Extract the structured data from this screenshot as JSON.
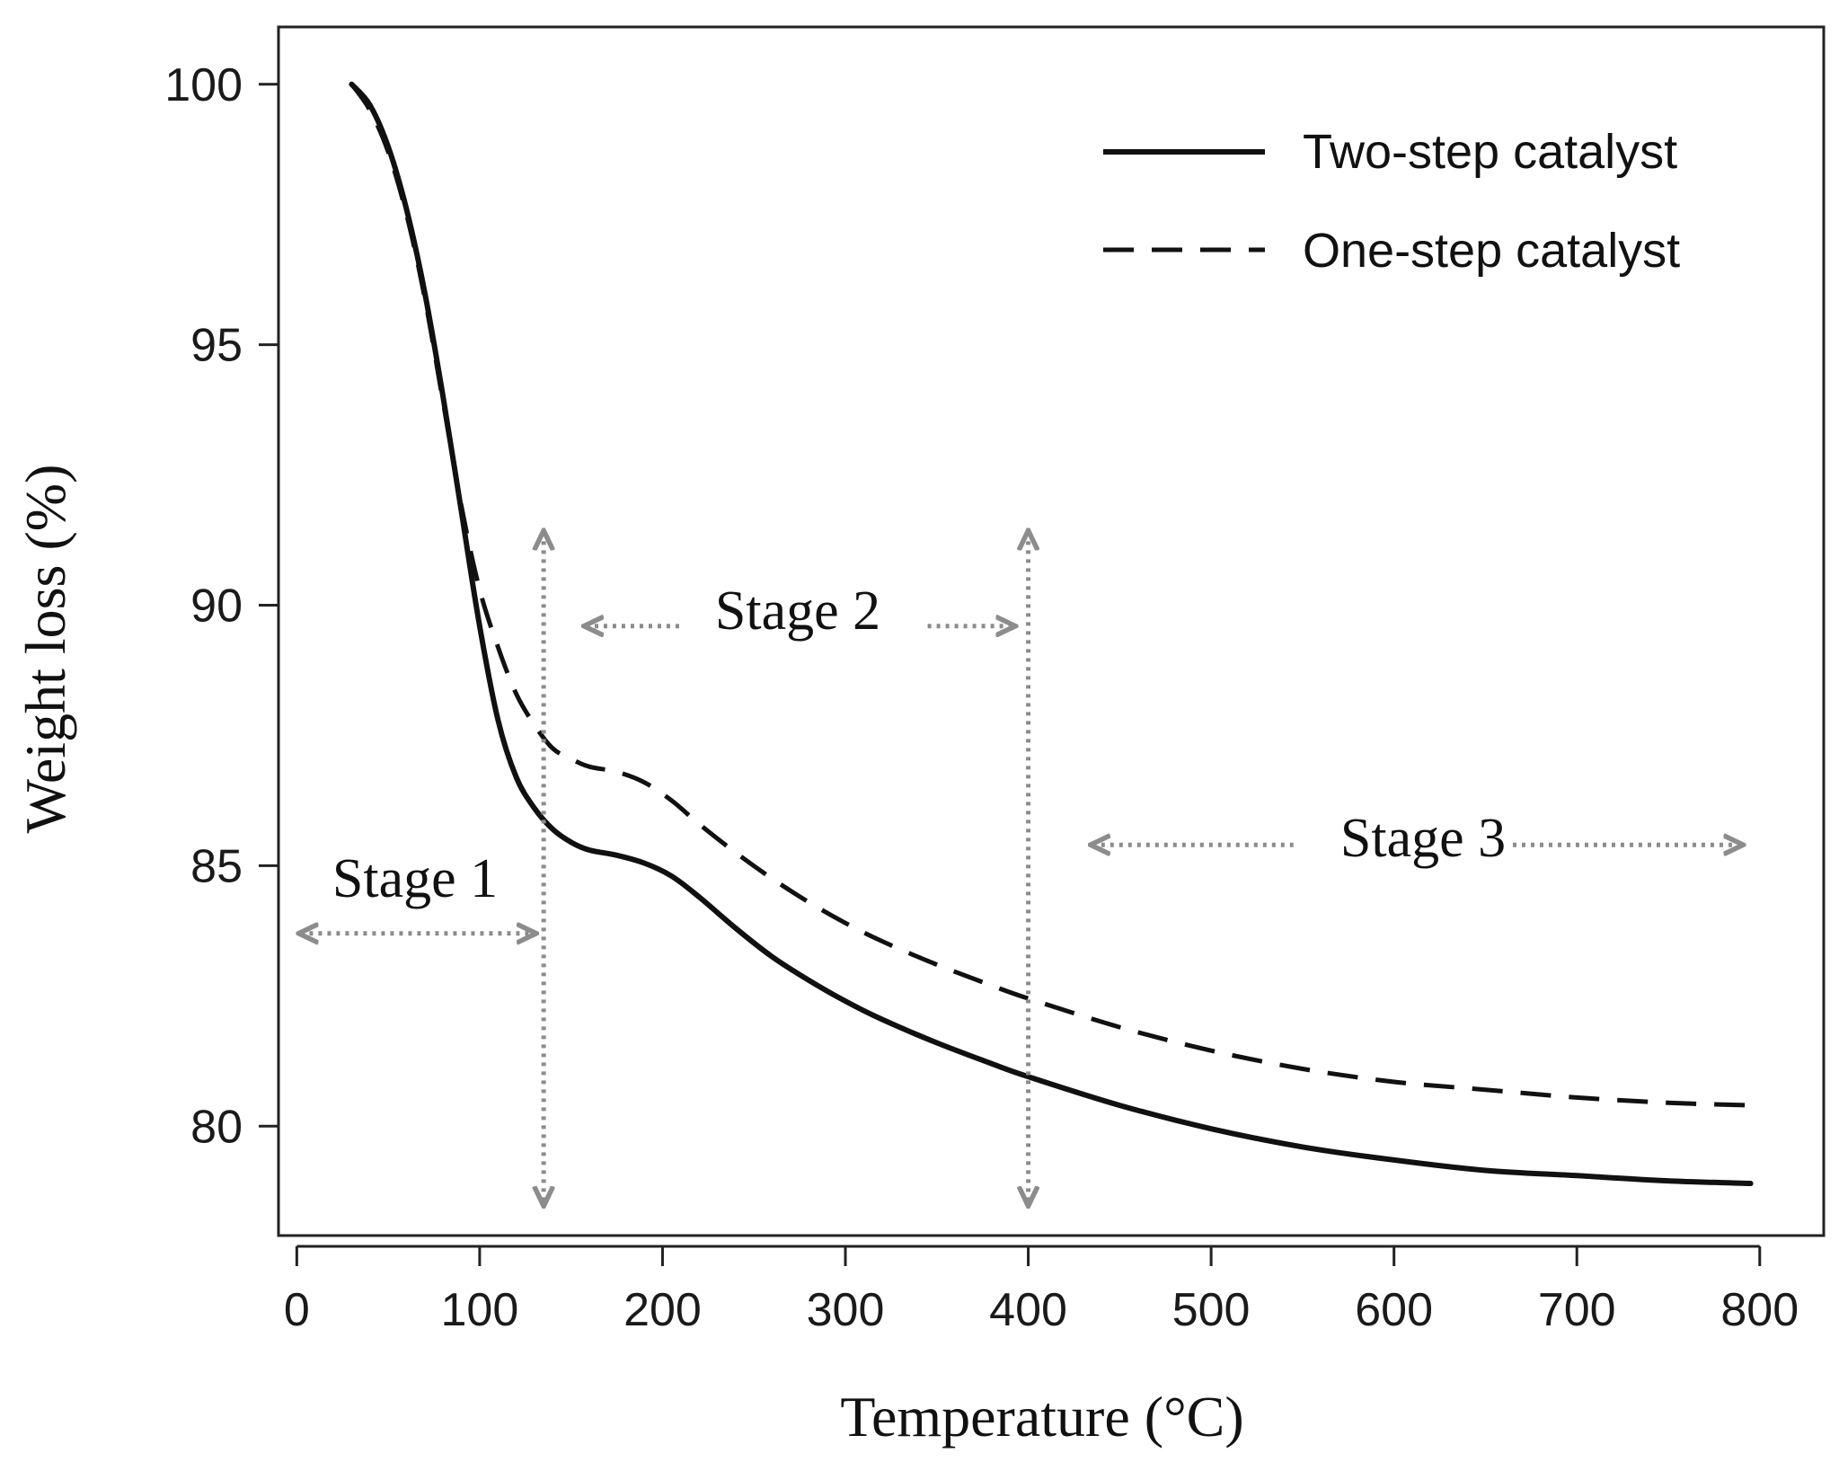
{
  "chart_data": {
    "type": "line",
    "title": "",
    "xlabel": "Temperature (°C)",
    "ylabel": "Weight loss (%)",
    "xlim": [
      -10,
      835
    ],
    "ylim": [
      77.9,
      101.1
    ],
    "xticks": [
      0,
      100,
      200,
      300,
      400,
      500,
      600,
      700,
      800
    ],
    "yticks": [
      80,
      85,
      90,
      95,
      100
    ],
    "grid": false,
    "legend_position": "top-right",
    "colors": {
      "line": "#111111",
      "annotation": "#8c8c8c"
    },
    "series": [
      {
        "name": "Two-step catalyst",
        "style": "solid",
        "x": [
          30,
          40,
          50,
          60,
          70,
          80,
          90,
          100,
          110,
          120,
          130,
          140,
          150,
          160,
          175,
          190,
          205,
          220,
          240,
          260,
          280,
          300,
          320,
          350,
          380,
          400,
          450,
          500,
          550,
          600,
          650,
          700,
          750,
          795
        ],
        "y": [
          100.0,
          99.6,
          98.8,
          97.6,
          96.0,
          94.0,
          91.8,
          89.6,
          87.8,
          86.7,
          86.1,
          85.7,
          85.45,
          85.3,
          85.2,
          85.05,
          84.8,
          84.4,
          83.8,
          83.25,
          82.8,
          82.4,
          82.05,
          81.6,
          81.2,
          80.95,
          80.4,
          79.95,
          79.6,
          79.35,
          79.15,
          79.05,
          78.95,
          78.9
        ]
      },
      {
        "name": "One-step catalyst",
        "style": "dashed",
        "x": [
          30,
          40,
          50,
          60,
          70,
          80,
          90,
          100,
          110,
          120,
          130,
          140,
          150,
          160,
          175,
          190,
          205,
          220,
          240,
          260,
          280,
          300,
          320,
          350,
          380,
          400,
          450,
          500,
          550,
          600,
          650,
          700,
          750,
          795
        ],
        "y": [
          100.0,
          99.5,
          98.7,
          97.5,
          95.9,
          93.9,
          91.9,
          90.3,
          89.2,
          88.3,
          87.7,
          87.25,
          87.05,
          86.9,
          86.8,
          86.6,
          86.25,
          85.8,
          85.25,
          84.75,
          84.3,
          83.9,
          83.55,
          83.1,
          82.7,
          82.45,
          81.9,
          81.45,
          81.1,
          80.85,
          80.7,
          80.55,
          80.45,
          80.4
        ]
      }
    ],
    "annotations": {
      "stage1": "Stage 1",
      "stage2": "Stage 2",
      "stage3": "Stage 3",
      "boundaries_x": [
        135,
        400
      ]
    }
  }
}
